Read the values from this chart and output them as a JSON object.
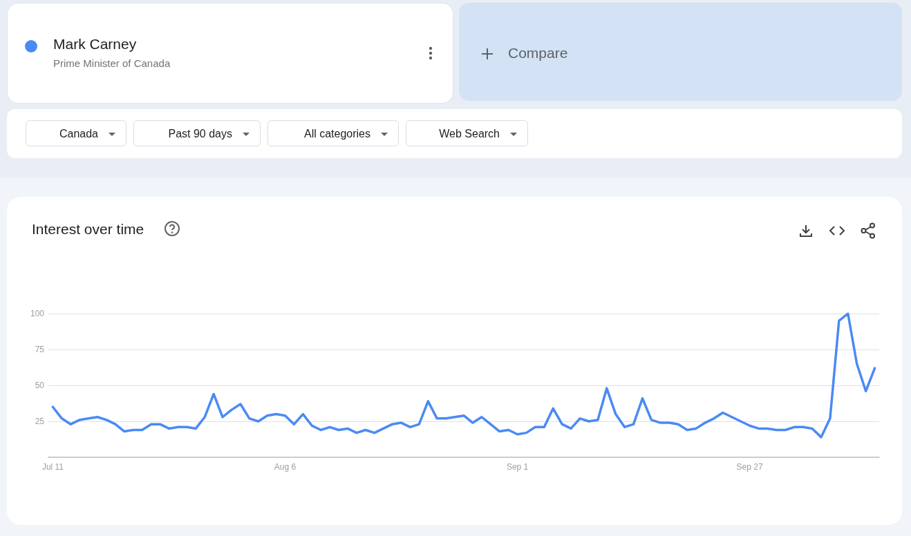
{
  "chart_data": {
    "type": "line",
    "title": "Interest over time",
    "categories": [
      "Jul 11",
      null,
      null,
      null,
      null,
      null,
      null,
      null,
      null,
      null,
      null,
      null,
      null,
      null,
      null,
      null,
      null,
      null,
      null,
      null,
      null,
      null,
      null,
      null,
      null,
      null,
      "Aug 6",
      null,
      null,
      null,
      null,
      null,
      null,
      null,
      null,
      null,
      null,
      null,
      null,
      null,
      null,
      null,
      null,
      null,
      null,
      null,
      null,
      null,
      null,
      null,
      null,
      null,
      "Sep 1",
      null,
      null,
      null,
      null,
      null,
      null,
      null,
      null,
      null,
      null,
      null,
      null,
      null,
      null,
      null,
      null,
      null,
      null,
      null,
      null,
      null,
      null,
      null,
      null,
      null,
      "Sep 27",
      null,
      null,
      null,
      null,
      null,
      null,
      null,
      null,
      null,
      null,
      null,
      null,
      null,
      null
    ],
    "series": [
      {
        "name": "Mark Carney",
        "color": "#4a8af4",
        "values": [
          35,
          27,
          23,
          26,
          27,
          28,
          26,
          23,
          18,
          19,
          19,
          23,
          23,
          20,
          21,
          21,
          20,
          28,
          44,
          28,
          33,
          37,
          27,
          25,
          29,
          30,
          29,
          23,
          30,
          22,
          19,
          21,
          19,
          20,
          17,
          19,
          17,
          20,
          23,
          24,
          21,
          23,
          39,
          27,
          27,
          28,
          29,
          24,
          28,
          23,
          18,
          19,
          16,
          17,
          21,
          21,
          34,
          23,
          20,
          27,
          25,
          26,
          48,
          30,
          21,
          23,
          41,
          26,
          24,
          24,
          23,
          19,
          20,
          24,
          27,
          31,
          28,
          25,
          22,
          20,
          20,
          19,
          19,
          21,
          21,
          20,
          14,
          27,
          95,
          100,
          65,
          46,
          62
        ]
      }
    ],
    "ylim": [
      0,
      100
    ],
    "yticks": [
      25,
      50,
      75,
      100
    ],
    "grid": "y",
    "legend": "top left",
    "marker": "none",
    "line_style": "solid",
    "annotations": [
      "Prime Minister of Canada",
      "Compare",
      "Canada",
      "Past 90 days",
      "All categories",
      "Web Search"
    ]
  }
}
